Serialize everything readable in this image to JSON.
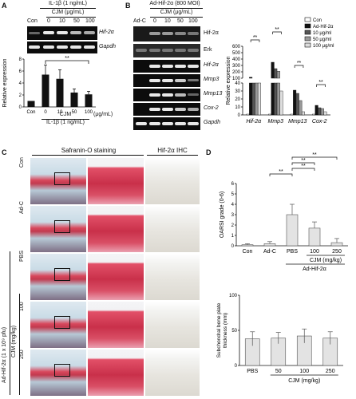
{
  "panel_a": {
    "letter": "A",
    "header": "IL-1β (1 ng/mL)",
    "cjm_label": "CJM (μg/mL)",
    "lanes": [
      "Con",
      "0",
      "10",
      "50",
      "100"
    ],
    "genes": [
      "Hif-2α",
      "Gapdh"
    ],
    "ylabel": "Relative expression",
    "unit": "(μg/mL)",
    "xgroup_cjm": "CJM",
    "xgroup_il": "IL-1β (1 ng/mL)",
    "sig": "**"
  },
  "panel_b": {
    "letter": "B",
    "header": "Ad-Hif-2α (800 MOI)",
    "cjm_label": "CJM (μg/mL)",
    "lanes": [
      "Ad-C",
      "0",
      "10",
      "50",
      "100"
    ],
    "rows": [
      "Hif-2α",
      "Erk",
      "Hif-2α",
      "Mmp3",
      "Mmp13",
      "Cox-2",
      "Gapdh"
    ],
    "ylabel": "Relative expression",
    "legend": [
      "Con",
      "Ad-Hif-2α",
      "10 μg/ml",
      "50 μg/ml",
      "100 μg/ml"
    ],
    "sig": [
      "**",
      "**",
      "**",
      "**"
    ]
  },
  "panel_c": {
    "letter": "C",
    "title_saf": "Safranin-O staining",
    "title_ihc": "Hif-2α IHC",
    "rows": [
      "Con",
      "Ad-C",
      "PBS",
      "100",
      "250"
    ],
    "side_ad": "Ad-Hif-2α (1 x 10⁹ pfu)",
    "side_cjm": "CJM (mg/kg)"
  },
  "panel_d": {
    "letter": "D",
    "top_ylabel": "OARSI grade (0-6)",
    "top_xgroup_cjm": "CJM (mg/kg)",
    "top_xgroup_ad": "Ad-Hif-2α",
    "bottom_ylabel": "Subchondral bone plate thickness (mm)",
    "bottom_xgroup": "CJM (mg/kg)",
    "sig": [
      "**",
      "**",
      "**",
      "**"
    ]
  },
  "chart_data": [
    {
      "type": "bar",
      "id": "A",
      "categories": [
        "Con",
        "0",
        "10",
        "50",
        "100"
      ],
      "values": [
        1.0,
        5.4,
        4.7,
        2.4,
        2.1
      ],
      "errors": [
        0.0,
        1.6,
        1.5,
        0.6,
        0.5
      ],
      "yticks": [
        0,
        2,
        4,
        6,
        8
      ],
      "ylim": [
        0,
        8
      ],
      "ylabel": "Relative expression"
    },
    {
      "type": "bar",
      "id": "B",
      "groups": [
        "Hif-2α",
        "Mmp3",
        "Mmp13",
        "Cox-2"
      ],
      "series": [
        {
          "name": "Con",
          "values": [
            1,
            1,
            1,
            1
          ]
        },
        {
          "name": "Ad-Hif-2α",
          "values": [
            115,
            350,
            31,
            12
          ]
        },
        {
          "name": "10 μg/ml",
          "values": [
            95,
            250,
            27,
            9
          ]
        },
        {
          "name": "50 μg/ml",
          "values": [
            85,
            210,
            18,
            8
          ]
        },
        {
          "name": "100 μg/ml",
          "values": [
            78,
            30,
            4,
            4
          ]
        }
      ],
      "upper_ticks": [
        100,
        200,
        300,
        400,
        500,
        600
      ],
      "lower_ticks": [
        0,
        10,
        20,
        30,
        40
      ],
      "ylabel": "Relative expression"
    },
    {
      "type": "bar",
      "id": "D-top",
      "categories": [
        "Con",
        "Ad-C",
        "PBS",
        "100",
        "250"
      ],
      "values": [
        0.1,
        0.2,
        3.0,
        1.7,
        0.3
      ],
      "errors": [
        0.1,
        0.2,
        1.0,
        0.6,
        0.4
      ],
      "yticks": [
        0,
        1,
        2,
        3,
        4,
        5,
        6
      ],
      "ylim": [
        0,
        6
      ],
      "ylabel": "OARSI grade (0-6)"
    },
    {
      "type": "bar",
      "id": "D-bottom",
      "categories": [
        "PBS",
        "50",
        "100",
        "250"
      ],
      "values": [
        38,
        39,
        42,
        39
      ],
      "errors": [
        10,
        8,
        10,
        9
      ],
      "yticks": [
        0,
        50,
        100
      ],
      "ylim": [
        0,
        100
      ],
      "ylabel": "Subchondral bone plate thickness (mm)"
    }
  ]
}
